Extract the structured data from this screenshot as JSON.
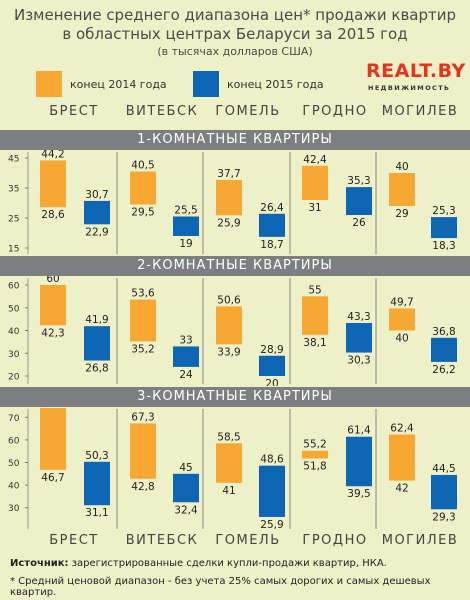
{
  "header": {
    "title_line1": "Изменение среднего диапазона цен* продажи квартир",
    "title_line2": "в областных центрах Беларуси за 2015 год",
    "subtitle": "(в тысячах долларов США)"
  },
  "legend": {
    "series_2014": "конец 2014 года",
    "series_2015": "конец 2015 года"
  },
  "logo": {
    "main": "REALT.BY",
    "sub": "НЕДВИЖИМОСТЬ"
  },
  "colors": {
    "orange": "#f6a833",
    "blue": "#0d66b4",
    "band": "#7c7e80",
    "background": "#eef0c8"
  },
  "cities": [
    "БРЕСТ",
    "ВИТЕБСК",
    "ГОМЕЛЬ",
    "ГРОДНО",
    "МОГИЛЕВ"
  ],
  "chart_data": [
    {
      "type": "range-bar",
      "title": "1-КОМНАТНЫЕ КВАРТИРЫ",
      "ylim": [
        15,
        45
      ],
      "yticks": [
        15,
        25,
        35,
        45
      ],
      "categories": [
        "БРЕСТ",
        "ВИТЕБСК",
        "ГОМЕЛЬ",
        "ГРОДНО",
        "МОГИЛЕВ"
      ],
      "series": [
        {
          "name": "конец 2014 года",
          "ranges": [
            [
              28.6,
              44.2
            ],
            [
              29.5,
              40.5
            ],
            [
              25.9,
              37.7
            ],
            [
              31,
              42.4
            ],
            [
              29,
              40
            ]
          ],
          "high_labels": [
            "44,2",
            "40,5",
            "37,7",
            "42,4",
            "40"
          ],
          "low_labels": [
            "28,6",
            "29,5",
            "25,9",
            "31",
            "29"
          ]
        },
        {
          "name": "конец 2015 года",
          "ranges": [
            [
              22.9,
              30.7
            ],
            [
              19,
              25.5
            ],
            [
              18.7,
              26.4
            ],
            [
              26,
              35.3
            ],
            [
              18.3,
              25.3
            ]
          ],
          "high_labels": [
            "30,7",
            "25,5",
            "26,4",
            "35,3",
            "25,3"
          ],
          "low_labels": [
            "22,9",
            "19",
            "18,7",
            "26",
            "18,3"
          ]
        }
      ]
    },
    {
      "type": "range-bar",
      "title": "2-КОМНАТНЫЕ КВАРТИРЫ",
      "ylim": [
        20,
        60
      ],
      "yticks": [
        20,
        30,
        40,
        50,
        60
      ],
      "categories": [
        "БРЕСТ",
        "ВИТЕБСК",
        "ГОМЕЛЬ",
        "ГРОДНО",
        "МОГИЛЕВ"
      ],
      "series": [
        {
          "name": "конец 2014 года",
          "ranges": [
            [
              42.3,
              60
            ],
            [
              35.2,
              53.6
            ],
            [
              33.9,
              50.6
            ],
            [
              38.1,
              55
            ],
            [
              40,
              49.7
            ]
          ],
          "high_labels": [
            "60",
            "53,6",
            "50,6",
            "55",
            "49,7"
          ],
          "low_labels": [
            "42,3",
            "35,2",
            "33,9",
            "38,1",
            "40"
          ]
        },
        {
          "name": "конец 2015 года",
          "ranges": [
            [
              26.8,
              41.9
            ],
            [
              24,
              33
            ],
            [
              20,
              28.9
            ],
            [
              30.3,
              43.3
            ],
            [
              26.2,
              36.8
            ]
          ],
          "high_labels": [
            "41,9",
            "33",
            "28,9",
            "43,3",
            "36,8"
          ],
          "low_labels": [
            "26,8",
            "24",
            "20",
            "30,3",
            "26,2"
          ]
        }
      ]
    },
    {
      "type": "range-bar",
      "title": "3-КОМНАТНЫЕ КВАРТИРЫ",
      "ylim": [
        25,
        75
      ],
      "yticks": [
        30,
        40,
        50,
        60,
        70
      ],
      "categories": [
        "БРЕСТ",
        "ВИТЕБСК",
        "ГОМЕЛЬ",
        "ГРОДНО",
        "МОГИЛЕВ"
      ],
      "series": [
        {
          "name": "конец 2014 года",
          "ranges": [
            [
              46.7,
              74.1
            ],
            [
              42.8,
              67.3
            ],
            [
              41,
              58.5
            ],
            [
              51.8,
              55.2
            ],
            [
              42,
              62.4
            ]
          ],
          "high_labels": [
            "74,1",
            "67,3",
            "58,5",
            "55,2",
            "62,4"
          ],
          "low_labels": [
            "46,7",
            "42,8",
            "41",
            "51,8",
            "42"
          ]
        },
        {
          "name": "конец 2015 года",
          "ranges": [
            [
              31.1,
              50.3
            ],
            [
              32.4,
              45
            ],
            [
              25.9,
              48.6
            ],
            [
              39.5,
              61.4
            ],
            [
              29.3,
              44.5
            ]
          ],
          "high_labels": [
            "50,3",
            "45",
            "48,6",
            "61,4",
            "44,5"
          ],
          "low_labels": [
            "31,1",
            "32,4",
            "25,9",
            "39,5",
            "29,3"
          ]
        }
      ]
    }
  ],
  "footer": {
    "source_label": "Источник:",
    "source_text": " зарегистрированные сделки купли-продажи квартир, НКА.",
    "note": "* Средний ценовой диапазон - без учета 25% самых дорогих и самых дешевых квартир."
  }
}
